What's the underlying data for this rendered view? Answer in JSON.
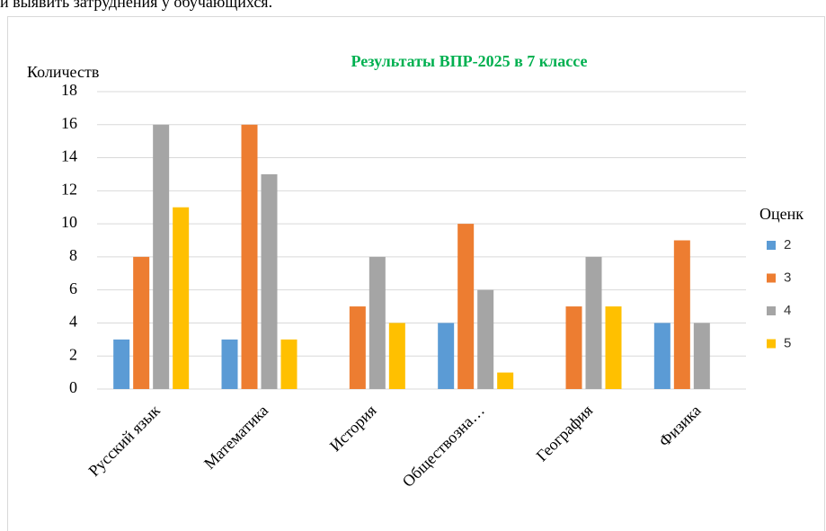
{
  "header_text": "и выявить затруднения у обучающихся.",
  "chart_data": {
    "type": "bar",
    "title": "Результаты ВПР-2025 в 7 классе",
    "y_label": "Количеств",
    "legend_title": "Оценк",
    "legend": "right",
    "categories": [
      "Русский язык",
      "Математика",
      "История",
      "Обществозна…",
      "География",
      "Физика"
    ],
    "series": [
      {
        "name": "2",
        "color": "#5b9bd5",
        "values": [
          3,
          3,
          0,
          4,
          0,
          4
        ]
      },
      {
        "name": "3",
        "color": "#ed7d31",
        "values": [
          8,
          16,
          5,
          10,
          5,
          9
        ]
      },
      {
        "name": "4",
        "color": "#a5a5a5",
        "values": [
          16,
          13,
          8,
          6,
          8,
          4
        ]
      },
      {
        "name": "5",
        "color": "#ffc000",
        "values": [
          11,
          3,
          4,
          1,
          5,
          0
        ]
      }
    ],
    "ylim": [
      0,
      18
    ],
    "yticks": [
      0,
      2,
      4,
      6,
      8,
      10,
      12,
      14,
      16,
      18
    ],
    "grid": true
  }
}
